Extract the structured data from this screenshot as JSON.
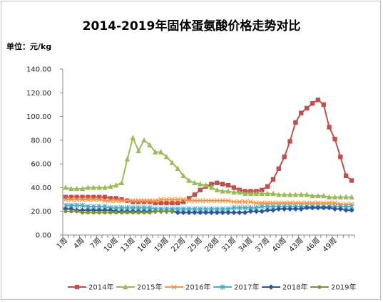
{
  "chart_data": {
    "type": "line",
    "title": "2014-2019年固体蛋氨酸价格走势对比",
    "ylabel": "单位：元/kg",
    "ylim": [
      0,
      140
    ],
    "yticks": [
      "0.00",
      "20.00",
      "40.00",
      "60.00",
      "80.00",
      "100.00",
      "120.00",
      "140.00"
    ],
    "xticks": [
      "1周",
      "4周",
      "7周",
      "10周",
      "13周",
      "16周",
      "19周",
      "22周",
      "25周",
      "28周",
      "31周",
      "34周",
      "37周",
      "40周",
      "43周",
      "46周",
      "49周"
    ],
    "x": [
      1,
      2,
      3,
      4,
      5,
      6,
      7,
      8,
      9,
      10,
      11,
      12,
      13,
      14,
      15,
      16,
      17,
      18,
      19,
      20,
      21,
      22,
      23,
      24,
      25,
      26,
      27,
      28,
      29,
      30,
      31,
      32,
      33,
      34,
      35,
      36,
      37,
      38,
      39,
      40,
      41,
      42,
      43,
      44,
      45,
      46,
      47,
      48,
      49,
      50,
      51,
      52
    ],
    "grid": false,
    "legend_position": "bottom",
    "series": [
      {
        "name": "2014年",
        "color": "#c0504d",
        "marker": "square",
        "values": [
          32,
          32,
          32,
          32,
          32,
          32,
          32,
          32,
          31,
          31,
          30,
          29,
          28,
          28,
          28,
          28,
          27,
          27,
          27,
          27,
          27,
          28,
          31,
          34,
          38,
          41,
          43,
          44,
          43,
          42,
          40,
          38,
          37,
          37,
          37,
          38,
          41,
          47,
          56,
          66,
          79,
          95,
          103,
          107,
          111,
          114,
          110,
          91,
          81,
          66,
          50,
          46
        ]
      },
      {
        "name": "2015年",
        "color": "#9bbb59",
        "marker": "triangle",
        "values": [
          40,
          39,
          39,
          39,
          40,
          40,
          40,
          40,
          41,
          42,
          44,
          64,
          82,
          71,
          80,
          76,
          70,
          70,
          66,
          61,
          56,
          50,
          46,
          44,
          43,
          42,
          40,
          38,
          37,
          37,
          36,
          36,
          35,
          35,
          35,
          35,
          35,
          35,
          34,
          34,
          34,
          34,
          34,
          34,
          33,
          33,
          33,
          32,
          32,
          32,
          32,
          32
        ]
      },
      {
        "name": "2016年",
        "color": "#f79646",
        "marker": "x",
        "values": [
          30,
          30,
          30,
          30,
          30,
          30,
          30,
          29,
          29,
          29,
          29,
          29,
          29,
          29,
          29,
          29,
          29,
          30,
          30,
          30,
          30,
          30,
          29,
          29,
          29,
          29,
          29,
          29,
          29,
          29,
          28,
          28,
          28,
          28,
          27,
          27,
          27,
          27,
          27,
          27,
          27,
          27,
          27,
          27,
          27,
          27,
          27,
          27,
          27,
          26,
          26,
          26
        ]
      },
      {
        "name": "2017年",
        "color": "#4bacc6",
        "marker": "asterisk",
        "values": [
          25,
          25,
          25,
          25,
          24,
          24,
          24,
          24,
          23,
          23,
          23,
          23,
          23,
          23,
          23,
          23,
          22,
          22,
          22,
          22,
          22,
          22,
          22,
          22,
          22,
          22,
          22,
          22,
          22,
          22,
          23,
          23,
          23,
          23,
          23,
          24,
          24,
          24,
          24,
          24,
          24,
          24,
          24,
          24,
          24,
          24,
          24,
          24,
          24,
          24,
          24,
          24
        ]
      },
      {
        "name": "2018年",
        "color": "#2e5597",
        "marker": "diamond",
        "values": [
          22,
          22,
          21,
          21,
          21,
          21,
          21,
          21,
          21,
          20,
          20,
          20,
          20,
          20,
          20,
          20,
          20,
          20,
          20,
          20,
          19,
          19,
          19,
          19,
          19,
          19,
          19,
          19,
          19,
          19,
          19,
          19,
          19,
          20,
          20,
          20,
          21,
          21,
          22,
          22,
          22,
          22,
          22,
          23,
          23,
          23,
          23,
          23,
          22,
          22,
          21,
          21
        ]
      },
      {
        "name": "2019年",
        "color": "#77933c",
        "marker": "circle",
        "values": [
          20,
          20,
          20,
          19,
          19,
          19,
          19,
          19,
          19,
          19,
          19,
          19,
          19,
          19,
          19,
          19,
          20,
          20,
          20,
          20,
          null,
          null,
          null,
          null,
          null,
          null,
          null,
          null,
          null,
          null,
          null,
          null,
          null,
          null,
          null,
          null,
          null,
          null,
          null,
          null,
          null,
          null,
          null,
          null,
          null,
          null,
          null,
          null,
          null,
          null,
          null,
          null
        ]
      }
    ]
  }
}
